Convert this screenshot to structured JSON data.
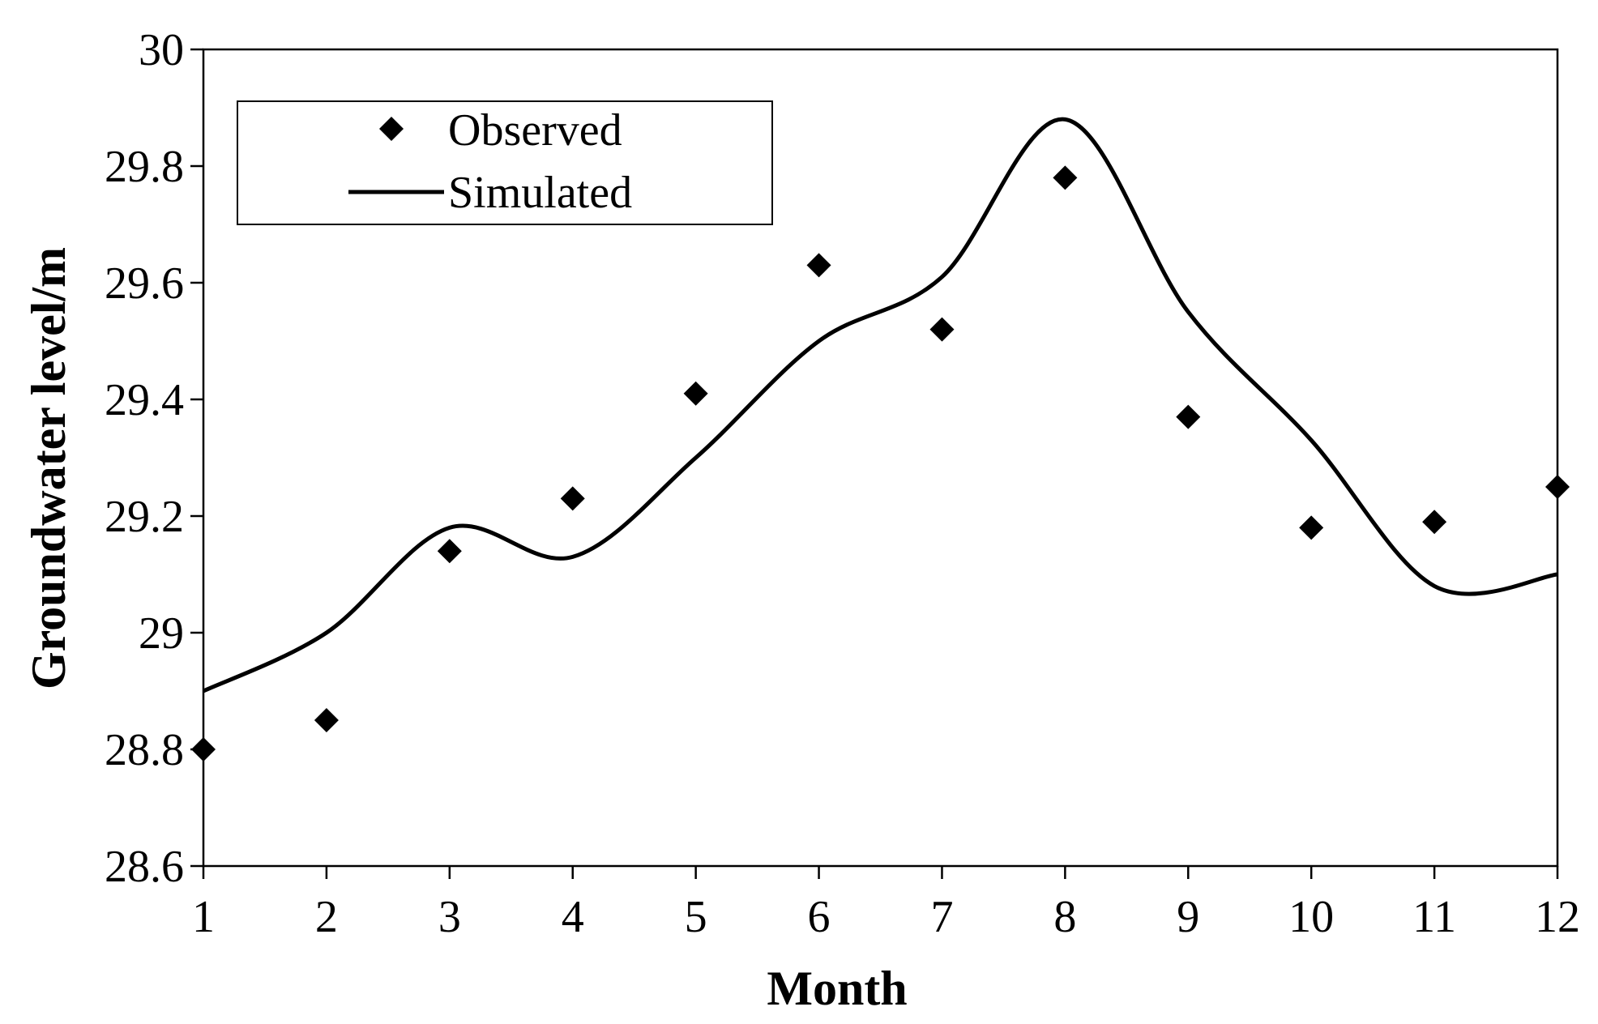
{
  "chart_data": {
    "type": "line",
    "title": "",
    "xlabel": "Month",
    "ylabel": "Groundwater level/m",
    "x": [
      1,
      2,
      3,
      4,
      5,
      6,
      7,
      8,
      9,
      10,
      11,
      12
    ],
    "xlim": [
      1,
      12
    ],
    "ylim": [
      28.6,
      30
    ],
    "x_ticks": [
      1,
      2,
      3,
      4,
      5,
      6,
      7,
      8,
      9,
      10,
      11,
      12
    ],
    "y_ticks": [
      28.6,
      28.8,
      29,
      29.2,
      29.4,
      29.6,
      29.8,
      30
    ],
    "y_tick_labels": [
      "28.6",
      "28.8",
      "29",
      "29.2",
      "29.4",
      "29.6",
      "29.8",
      "30"
    ],
    "grid": false,
    "legend_position": "top-left",
    "series": [
      {
        "name": "Observed",
        "kind": "scatter",
        "marker": "diamond",
        "color": "#000000",
        "values": [
          28.8,
          28.85,
          29.14,
          29.23,
          29.41,
          29.63,
          29.52,
          29.78,
          29.37,
          29.18,
          29.19,
          29.25
        ]
      },
      {
        "name": "Simulated",
        "kind": "line",
        "smooth": true,
        "color": "#000000",
        "values": [
          28.9,
          29.0,
          29.18,
          29.13,
          29.3,
          29.5,
          29.61,
          29.88,
          29.55,
          29.33,
          29.08,
          29.1
        ]
      }
    ]
  }
}
